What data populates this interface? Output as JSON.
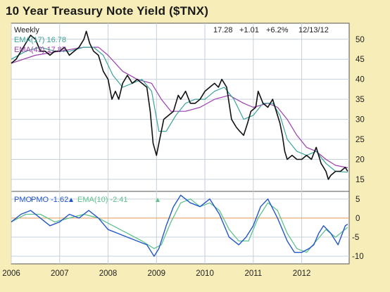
{
  "chart_data": [
    {
      "type": "line",
      "title": "10 Year Treasury Note Yield ($TNX)",
      "periodicity": "Weekly",
      "last_quote": {
        "close": "17.28",
        "change": "+1.01",
        "pct": "+6.2%",
        "date": "12/13/12"
      },
      "legend_labels": [
        "EMA(17) 16.78",
        "EMA(43) 17.87"
      ],
      "ylim": [
        12,
        54
      ],
      "y_ticks": [
        15,
        20,
        25,
        30,
        35,
        40,
        45,
        50
      ],
      "x_ticks": [
        "2006",
        "2007",
        "2008",
        "2009",
        "2010",
        "2011",
        "2012"
      ],
      "x_tick_values": [
        2006,
        2007,
        2008,
        2009,
        2010,
        2011,
        2012
      ],
      "xlim": [
        2006.0,
        2012.98
      ],
      "grid": true,
      "price": {
        "x": [
          2006.0,
          2006.1,
          2006.2,
          2006.3,
          2006.4,
          2006.5,
          2006.6,
          2006.7,
          2006.8,
          2006.9,
          2007.0,
          2007.1,
          2007.2,
          2007.3,
          2007.4,
          2007.5,
          2007.55,
          2007.62,
          2007.7,
          2007.8,
          2007.9,
          2008.0,
          2008.08,
          2008.15,
          2008.22,
          2008.3,
          2008.4,
          2008.5,
          2008.6,
          2008.7,
          2008.8,
          2008.87,
          2008.93,
          2009.0,
          2009.05,
          2009.15,
          2009.25,
          2009.35,
          2009.45,
          2009.5,
          2009.6,
          2009.7,
          2009.8,
          2009.9,
          2010.0,
          2010.1,
          2010.2,
          2010.28,
          2010.35,
          2010.45,
          2010.55,
          2010.65,
          2010.72,
          2010.8,
          2010.88,
          2010.95,
          2011.05,
          2011.1,
          2011.2,
          2011.3,
          2011.4,
          2011.5,
          2011.55,
          2011.6,
          2011.65,
          2011.7,
          2011.8,
          2011.9,
          2012.0,
          2012.1,
          2012.2,
          2012.3,
          2012.4,
          2012.5,
          2012.55,
          2012.6,
          2012.7,
          2012.8,
          2012.9,
          2012.95
        ],
        "y": [
          44,
          45,
          47,
          49,
          51,
          50,
          47,
          47,
          46,
          47,
          47,
          48,
          46,
          47,
          48,
          50,
          52,
          49,
          47,
          46,
          42,
          40,
          35,
          37,
          35,
          39,
          41,
          39,
          40,
          39,
          38,
          32,
          24,
          21,
          24,
          30,
          31,
          32,
          36,
          35,
          37,
          34,
          34,
          35,
          37,
          38,
          39,
          38,
          40,
          38,
          30,
          28,
          27,
          26,
          29,
          32,
          33,
          37,
          34,
          33,
          35,
          31,
          29,
          26,
          22,
          20,
          21,
          20,
          20,
          21,
          20,
          23,
          19,
          17,
          15,
          16,
          17,
          17,
          18,
          17
        ]
      },
      "ema17": {
        "x": [
          2006.0,
          2006.3,
          2006.6,
          2006.9,
          2007.2,
          2007.5,
          2007.7,
          2007.9,
          2008.1,
          2008.3,
          2008.5,
          2008.7,
          2008.9,
          2009.05,
          2009.2,
          2009.4,
          2009.6,
          2009.8,
          2010.0,
          2010.2,
          2010.4,
          2010.6,
          2010.8,
          2011.0,
          2011.2,
          2011.4,
          2011.55,
          2011.7,
          2011.9,
          2012.1,
          2012.3,
          2012.5,
          2012.7,
          2012.95
        ],
        "y": [
          45,
          47,
          48,
          47,
          47,
          48,
          48,
          46,
          41,
          38,
          39,
          40,
          37,
          27,
          27,
          31,
          34,
          35,
          35,
          37,
          38,
          35,
          30,
          31,
          34,
          34,
          31,
          25,
          22,
          21,
          22,
          19,
          17,
          16.8
        ]
      },
      "ema43": {
        "x": [
          2006.0,
          2006.5,
          2007.0,
          2007.5,
          2007.8,
          2008.0,
          2008.3,
          2008.6,
          2008.9,
          2009.1,
          2009.3,
          2009.6,
          2009.9,
          2010.2,
          2010.5,
          2010.8,
          2011.0,
          2011.3,
          2011.5,
          2011.7,
          2011.9,
          2012.1,
          2012.3,
          2012.5,
          2012.7,
          2012.95
        ],
        "y": [
          44,
          46,
          47,
          48,
          48,
          46,
          42,
          40,
          39,
          35,
          32,
          32,
          33,
          35,
          36,
          34,
          33,
          34,
          33,
          30,
          26,
          23,
          22,
          20,
          18.5,
          17.9
        ]
      }
    },
    {
      "type": "line",
      "title": "PMO",
      "legend_labels": [
        "PMO -1.62",
        "EMA(10) -2.41"
      ],
      "ylim": [
        -12,
        7
      ],
      "y_ticks": [
        -10,
        -5,
        0,
        5
      ],
      "zero_line": 0,
      "pmo": {
        "x": [
          2006.0,
          2006.2,
          2006.4,
          2006.6,
          2006.8,
          2007.0,
          2007.2,
          2007.4,
          2007.6,
          2007.8,
          2008.0,
          2008.2,
          2008.4,
          2008.6,
          2008.8,
          2008.95,
          2009.05,
          2009.2,
          2009.35,
          2009.5,
          2009.7,
          2009.9,
          2010.1,
          2010.3,
          2010.5,
          2010.7,
          2010.85,
          2011.0,
          2011.15,
          2011.3,
          2011.5,
          2011.7,
          2011.85,
          2012.0,
          2012.15,
          2012.25,
          2012.35,
          2012.45,
          2012.6,
          2012.75,
          2012.9,
          2012.95
        ],
        "y": [
          -1,
          1,
          2,
          0,
          -2,
          -1,
          1,
          0,
          2,
          0,
          -3,
          -4,
          -5,
          -6,
          -7,
          -10,
          -8,
          -2,
          3,
          6,
          4,
          3,
          5,
          1,
          -5,
          -7,
          -5,
          -2,
          3,
          5,
          0,
          -6,
          -9,
          -9,
          -8,
          -7,
          -4,
          -2,
          -4,
          -7,
          -2,
          -1.6
        ]
      },
      "ema10": {
        "x": [
          2006.0,
          2006.3,
          2006.6,
          2006.9,
          2007.2,
          2007.5,
          2007.8,
          2008.1,
          2008.4,
          2008.7,
          2008.95,
          2009.1,
          2009.3,
          2009.5,
          2009.7,
          2009.9,
          2010.1,
          2010.3,
          2010.5,
          2010.7,
          2010.9,
          2011.1,
          2011.3,
          2011.5,
          2011.7,
          2011.9,
          2012.1,
          2012.3,
          2012.5,
          2012.7,
          2012.95
        ],
        "y": [
          -1,
          1,
          1,
          -1,
          0,
          1,
          0,
          -2,
          -4,
          -6,
          -8,
          -7,
          -1,
          4,
          5,
          3,
          4,
          2,
          -3,
          -6,
          -6,
          0,
          4,
          2,
          -4,
          -8,
          -9,
          -6,
          -3,
          -5,
          -2.4
        ]
      }
    }
  ],
  "colors": {
    "price": "#111111",
    "ema17": "#3aa39a",
    "ema43": "#9b3fae",
    "pmo": "#2255c8",
    "pmo_ema": "#5fc28f",
    "zero": "#e8a060",
    "grid": "#c6d0da",
    "panel_bg": "#ffffff",
    "outer_bg": "#f7edb8"
  }
}
